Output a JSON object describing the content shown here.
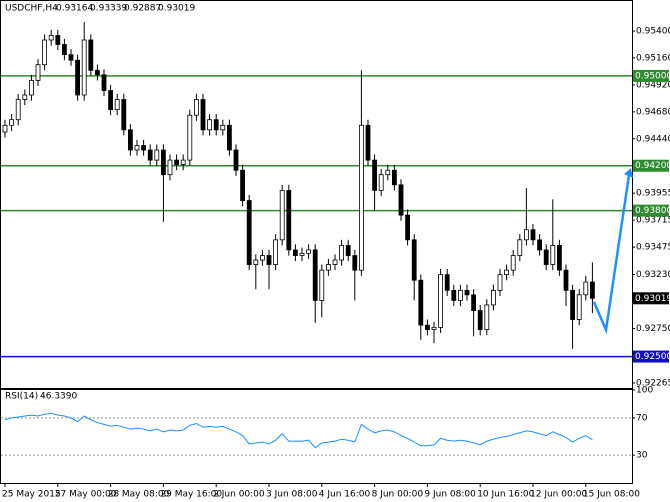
{
  "chart_data": {
    "type": "candlestick",
    "title": "USDCHF,H4",
    "categories": [
      "25 May 2015",
      null,
      null,
      null,
      null,
      null,
      null,
      null,
      "27 May 00:00",
      null,
      null,
      null,
      null,
      null,
      null,
      null,
      "28 May 08:00",
      null,
      null,
      null,
      null,
      null,
      null,
      null,
      "29 May 16:00",
      null,
      null,
      null,
      null,
      null,
      null,
      null,
      "2 Jun 00:00",
      null,
      null,
      null,
      null,
      null,
      null,
      null,
      "3 Jun 08:00",
      null,
      null,
      null,
      null,
      null,
      null,
      null,
      "4 Jun 16:00",
      null,
      null,
      null,
      null,
      null,
      null,
      null,
      "8 Jun 00:00",
      null,
      null,
      null,
      null,
      null,
      null,
      null,
      "9 Jun 08:00",
      null,
      null,
      null,
      null,
      null,
      null,
      null,
      "10 Jun 16:00",
      null,
      null,
      null,
      null,
      null,
      null,
      null,
      "12 Jun 00:00",
      null,
      null,
      null,
      null,
      null,
      null,
      null,
      "15 Jun 08:00",
      null
    ],
    "open": [
      0.945,
      0.9456,
      0.9461,
      0.9479,
      0.9483,
      0.9496,
      0.951,
      0.9532,
      0.9536,
      0.9528,
      0.9519,
      0.9514,
      0.9483,
      0.9532,
      0.9505,
      0.9501,
      0.9487,
      0.947,
      0.9479,
      0.9452,
      0.9434,
      0.9438,
      0.9434,
      0.9425,
      0.9434,
      0.9412,
      0.9425,
      0.9421,
      0.9425,
      0.9465,
      0.9479,
      0.9452,
      0.9461,
      0.9452,
      0.9456,
      0.9434,
      0.9416,
      0.9389,
      0.9332,
      0.9336,
      0.934,
      0.9332,
      0.9354,
      0.9398,
      0.9345,
      0.934,
      0.9342,
      0.9345,
      0.93,
      0.9327,
      0.9332,
      0.9336,
      0.9349,
      0.934,
      0.9327,
      0.9456,
      0.9425,
      0.9398,
      0.9412,
      0.9416,
      0.9403,
      0.9376,
      0.9354,
      0.9318,
      0.9278,
      0.9274,
      0.9276,
      0.9323,
      0.9309,
      0.93,
      0.9309,
      0.9305,
      0.9291,
      0.9274,
      0.9296,
      0.9309,
      0.9323,
      0.9327,
      0.934,
      0.9354,
      0.9363,
      0.9354,
      0.9345,
      0.9332,
      0.9349,
      0.9327,
      0.9309,
      0.9283,
      0.9305,
      0.93164
    ],
    "high": [
      0.9461,
      0.9466,
      0.9484,
      0.9488,
      0.9501,
      0.9515,
      0.9537,
      0.9541,
      0.9541,
      0.9533,
      0.9524,
      0.9519,
      0.9548,
      0.9537,
      0.951,
      0.9506,
      0.9492,
      0.9484,
      0.9484,
      0.9457,
      0.9443,
      0.9443,
      0.9439,
      0.9439,
      0.9439,
      0.943,
      0.943,
      0.943,
      0.947,
      0.9484,
      0.9484,
      0.9466,
      0.9466,
      0.9461,
      0.9461,
      0.9439,
      0.9421,
      0.9394,
      0.9341,
      0.9345,
      0.9345,
      0.9359,
      0.9403,
      0.9403,
      0.935,
      0.9347,
      0.935,
      0.935,
      0.9332,
      0.9337,
      0.9341,
      0.9354,
      0.9354,
      0.9345,
      0.9505,
      0.9461,
      0.943,
      0.9417,
      0.9421,
      0.9421,
      0.9408,
      0.9381,
      0.9359,
      0.9323,
      0.9283,
      0.9281,
      0.9328,
      0.9328,
      0.9314,
      0.9314,
      0.9314,
      0.931,
      0.9296,
      0.9301,
      0.9314,
      0.9328,
      0.9332,
      0.9345,
      0.9359,
      0.94,
      0.9368,
      0.9359,
      0.935,
      0.939,
      0.9354,
      0.9332,
      0.9314,
      0.931,
      0.9322,
      0.93339
    ],
    "low": [
      0.9445,
      0.9451,
      0.9456,
      0.9474,
      0.9478,
      0.9491,
      0.9505,
      0.9527,
      0.9523,
      0.9514,
      0.9509,
      0.9478,
      0.9478,
      0.95,
      0.9496,
      0.9482,
      0.9465,
      0.9465,
      0.9447,
      0.9429,
      0.9429,
      0.9429,
      0.942,
      0.942,
      0.937,
      0.9407,
      0.9416,
      0.9416,
      0.942,
      0.946,
      0.9447,
      0.9447,
      0.9447,
      0.9447,
      0.9429,
      0.9411,
      0.9384,
      0.9327,
      0.931,
      0.9331,
      0.931,
      0.9327,
      0.9349,
      0.934,
      0.9335,
      0.9335,
      0.9337,
      0.928,
      0.9285,
      0.9322,
      0.9327,
      0.9331,
      0.9335,
      0.93,
      0.9322,
      0.942,
      0.938,
      0.9393,
      0.9407,
      0.9398,
      0.9371,
      0.9349,
      0.93,
      0.9265,
      0.9269,
      0.9262,
      0.9271,
      0.9304,
      0.9295,
      0.9295,
      0.93,
      0.9268,
      0.9269,
      0.9269,
      0.9291,
      0.9304,
      0.9318,
      0.9322,
      0.9335,
      0.9349,
      0.9349,
      0.934,
      0.9327,
      0.9327,
      0.9322,
      0.9295,
      0.9257,
      0.9278,
      0.93,
      0.92887
    ],
    "close": [
      0.9456,
      0.9461,
      0.9479,
      0.9483,
      0.9496,
      0.951,
      0.9532,
      0.9536,
      0.9528,
      0.9519,
      0.9514,
      0.9483,
      0.9532,
      0.9505,
      0.9501,
      0.9487,
      0.947,
      0.9479,
      0.9452,
      0.9434,
      0.9438,
      0.9434,
      0.9425,
      0.9434,
      0.9412,
      0.9425,
      0.9421,
      0.9425,
      0.9465,
      0.9479,
      0.9452,
      0.9461,
      0.9452,
      0.9456,
      0.9434,
      0.9416,
      0.9389,
      0.9332,
      0.9336,
      0.934,
      0.9332,
      0.9354,
      0.9398,
      0.9345,
      0.934,
      0.9342,
      0.9345,
      0.93,
      0.9327,
      0.9332,
      0.9336,
      0.9349,
      0.934,
      0.9327,
      0.9456,
      0.9425,
      0.9398,
      0.9412,
      0.9416,
      0.9403,
      0.9376,
      0.9354,
      0.9318,
      0.9278,
      0.9274,
      0.9276,
      0.9323,
      0.9309,
      0.93,
      0.9309,
      0.9305,
      0.9291,
      0.9274,
      0.9296,
      0.9309,
      0.9323,
      0.9327,
      0.934,
      0.9354,
      0.9363,
      0.9354,
      0.9345,
      0.9332,
      0.9349,
      0.9327,
      0.9309,
      0.9283,
      0.9305,
      0.93164,
      0.93019
    ],
    "ylim": [
      0.9222,
      0.95516
    ],
    "yticks": [
      {
        "value": 0.954,
        "label": "0.95400"
      },
      {
        "value": 0.9516,
        "label": "0.95160"
      },
      {
        "value": 0.9492,
        "label": "0.94920"
      },
      {
        "value": 0.9468,
        "label": "0.94680"
      },
      {
        "value": 0.9444,
        "label": "0.94440"
      },
      {
        "value": 0.93955,
        "label": "0.93955"
      },
      {
        "value": 0.93715,
        "label": "0.93715"
      },
      {
        "value": 0.93475,
        "label": "0.93475"
      },
      {
        "value": 0.9323,
        "label": "0.93230"
      },
      {
        "value": 0.9275,
        "label": "0.92750"
      },
      {
        "value": 0.92265,
        "label": "0.92265"
      }
    ],
    "levels": [
      {
        "value": 0.95,
        "label": "0.95000",
        "color": "#2e8b2e"
      },
      {
        "value": 0.942,
        "label": "0.94200",
        "color": "#2e8b2e"
      },
      {
        "value": 0.938,
        "label": "0.93800",
        "color": "#2e8b2e"
      },
      {
        "value": 0.925,
        "label": "0.92500",
        "color": "#1010c0"
      }
    ],
    "indicator": {
      "type": "line",
      "name": "RSI(14)",
      "last": {
        "value": 46.339,
        "label": "46.3390"
      },
      "color": "#1e90ff",
      "ylim": [
        0,
        100
      ],
      "yticks": [
        100,
        70,
        30
      ],
      "values": [
        68,
        70,
        71,
        72,
        73,
        72,
        74,
        75,
        73,
        72,
        70,
        66,
        72,
        68,
        65,
        63,
        61,
        62,
        60,
        58,
        59,
        58,
        56,
        58,
        55,
        57,
        56,
        57,
        62,
        64,
        60,
        61,
        60,
        61,
        58,
        55,
        51,
        42,
        43,
        44,
        42,
        46,
        53,
        45,
        45,
        45,
        46,
        38,
        43,
        44,
        45,
        47,
        46,
        44,
        63,
        58,
        54,
        56,
        57,
        55,
        51,
        48,
        44,
        40,
        40,
        41,
        48,
        46,
        45,
        46,
        45,
        43,
        41,
        45,
        47,
        49,
        50,
        52,
        54,
        56,
        55,
        53,
        51,
        55,
        52,
        49,
        44,
        48,
        51,
        46.339
      ]
    }
  }
}
